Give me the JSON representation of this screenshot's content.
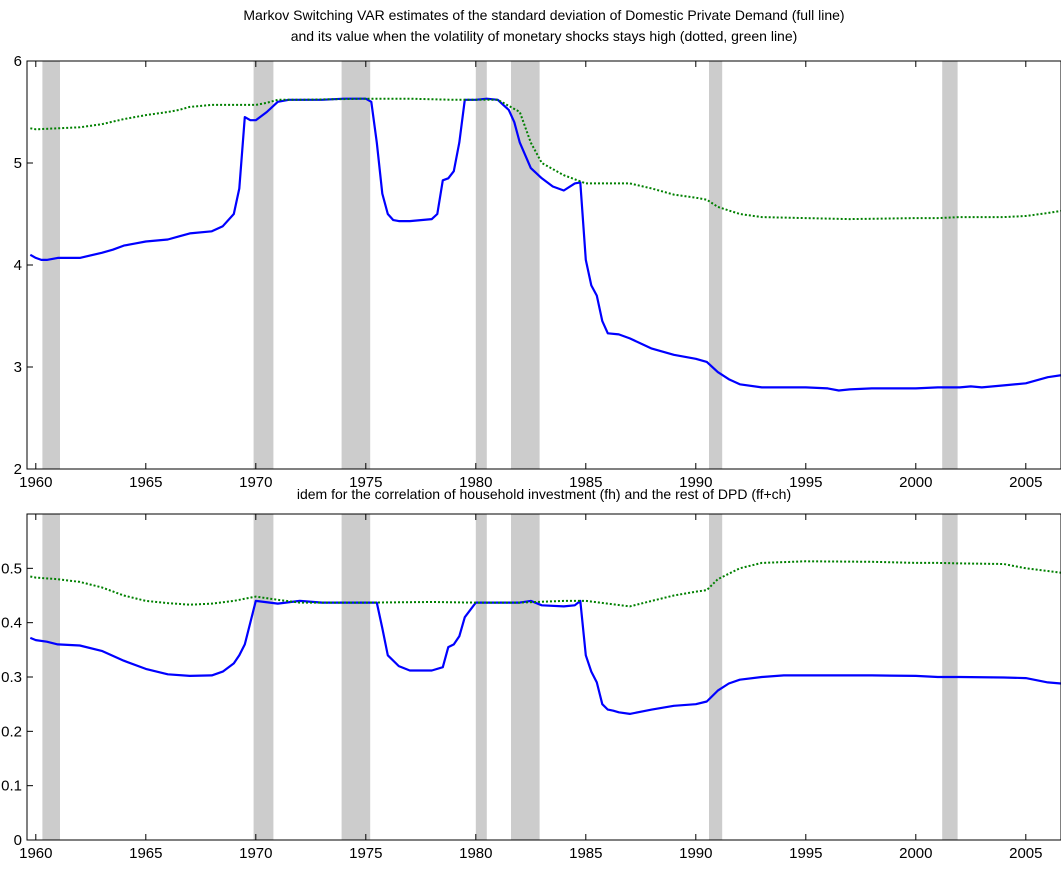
{
  "chart_data": [
    {
      "type": "line",
      "title_lines": [
        "Markov Switching VAR estimates of the standard deviation of Domestic Private Demand (full line)",
        "and its value when the volatility of monetary shocks stays high (dotted, green line)"
      ],
      "xlim": [
        1959.6,
        2006.6
      ],
      "ylim": [
        2,
        6
      ],
      "x_ticks": [
        "1960",
        "1965",
        "1970",
        "1975",
        "1980",
        "1985",
        "1990",
        "1995",
        "2000",
        "2005"
      ],
      "y_ticks": [
        "2",
        "3",
        "4",
        "5",
        "6"
      ],
      "grid": false,
      "recession_bands": [
        [
          1960.3,
          1961.1
        ],
        [
          1969.9,
          1970.8
        ],
        [
          1973.9,
          1975.2
        ],
        [
          1980.0,
          1980.5
        ],
        [
          1981.6,
          1982.9
        ],
        [
          1990.6,
          1991.2
        ],
        [
          2001.2,
          2001.9
        ]
      ],
      "band_color": "#cccccc",
      "series": [
        {
          "style": "solid",
          "color": "#0000ff",
          "x": [
            1959.75,
            1960,
            1960.25,
            1960.5,
            1961,
            1962,
            1963,
            1963.5,
            1964,
            1964.5,
            1965,
            1966,
            1966.5,
            1967,
            1968,
            1968.5,
            1969,
            1969.25,
            1969.5,
            1969.75,
            1970,
            1970.5,
            1971,
            1971.5,
            1972,
            1973,
            1974,
            1975,
            1975.25,
            1975.5,
            1975.75,
            1976,
            1976.25,
            1976.5,
            1977,
            1978,
            1978.25,
            1978.5,
            1978.75,
            1979,
            1979.25,
            1979.5,
            1980,
            1980.5,
            1981,
            1981.25,
            1981.5,
            1981.75,
            1982,
            1982.5,
            1983,
            1983.5,
            1984,
            1984.5,
            1984.75,
            1985,
            1985.25,
            1985.5,
            1985.75,
            1986,
            1986.5,
            1987,
            1988,
            1988.5,
            1989,
            1990,
            1990.5,
            1991,
            1991.5,
            1992,
            1993,
            1995,
            1996,
            1996.5,
            1997,
            1998,
            2000,
            2001,
            2002,
            2002.5,
            2003,
            2004,
            2005,
            2006,
            2006.6
          ],
          "y": [
            4.1,
            4.07,
            4.05,
            4.05,
            4.07,
            4.07,
            4.12,
            4.15,
            4.19,
            4.21,
            4.23,
            4.25,
            4.28,
            4.31,
            4.33,
            4.38,
            4.5,
            4.75,
            5.45,
            5.42,
            5.42,
            5.5,
            5.6,
            5.62,
            5.62,
            5.62,
            5.63,
            5.63,
            5.6,
            5.2,
            4.7,
            4.5,
            4.44,
            4.43,
            4.43,
            4.45,
            4.5,
            4.83,
            4.85,
            4.92,
            5.2,
            5.62,
            5.62,
            5.63,
            5.62,
            5.57,
            5.52,
            5.4,
            5.2,
            4.95,
            4.85,
            4.77,
            4.73,
            4.8,
            4.81,
            4.05,
            3.8,
            3.7,
            3.45,
            3.33,
            3.32,
            3.28,
            3.18,
            3.15,
            3.12,
            3.08,
            3.05,
            2.95,
            2.88,
            2.83,
            2.8,
            2.8,
            2.79,
            2.77,
            2.78,
            2.79,
            2.79,
            2.8,
            2.8,
            2.81,
            2.8,
            2.82,
            2.84,
            2.9,
            2.92
          ]
        },
        {
          "style": "dotted",
          "color": "#008000",
          "x": [
            1959.75,
            1960,
            1961,
            1962,
            1963,
            1964,
            1965,
            1966,
            1966.5,
            1967,
            1968,
            1969,
            1970,
            1970.5,
            1971,
            1972,
            1975,
            1977,
            1979,
            1980,
            1981,
            1982,
            1982.5,
            1983,
            1984,
            1985,
            1986,
            1987,
            1988,
            1989,
            1990,
            1990.5,
            1991,
            1992,
            1993,
            1995,
            1997,
            2000,
            2001,
            2002,
            2004,
            2005,
            2006,
            2006.6
          ],
          "y": [
            5.34,
            5.33,
            5.34,
            5.35,
            5.38,
            5.43,
            5.47,
            5.5,
            5.52,
            5.55,
            5.57,
            5.57,
            5.57,
            5.59,
            5.62,
            5.62,
            5.63,
            5.63,
            5.62,
            5.62,
            5.62,
            5.5,
            5.2,
            5.0,
            4.88,
            4.8,
            4.8,
            4.8,
            4.75,
            4.69,
            4.66,
            4.64,
            4.57,
            4.5,
            4.47,
            4.46,
            4.45,
            4.46,
            4.46,
            4.47,
            4.47,
            4.48,
            4.51,
            4.53
          ]
        }
      ]
    },
    {
      "type": "line",
      "title_lines": [
        "idem for the correlation of household investment (fh) and the rest of DPD (ff+ch)"
      ],
      "xlim": [
        1959.6,
        2006.6
      ],
      "ylim": [
        0,
        0.6
      ],
      "x_ticks": [
        "1960",
        "1965",
        "1970",
        "1975",
        "1980",
        "1985",
        "1990",
        "1995",
        "2000",
        "2005"
      ],
      "y_ticks": [
        "0",
        "0.1",
        "0.2",
        "0.3",
        "0.4",
        "0.5"
      ],
      "grid": false,
      "recession_bands": [
        [
          1960.3,
          1961.1
        ],
        [
          1969.9,
          1970.8
        ],
        [
          1973.9,
          1975.2
        ],
        [
          1980.0,
          1980.5
        ],
        [
          1981.6,
          1982.9
        ],
        [
          1990.6,
          1991.2
        ],
        [
          2001.2,
          2001.9
        ]
      ],
      "band_color": "#cccccc",
      "series": [
        {
          "style": "solid",
          "color": "#0000ff",
          "x": [
            1959.75,
            1960,
            1960.5,
            1961,
            1962,
            1963,
            1964,
            1965,
            1966,
            1967,
            1968,
            1968.5,
            1969,
            1969.25,
            1969.5,
            1970,
            1971,
            1972,
            1973,
            1974,
            1975,
            1975.25,
            1975.5,
            1975.75,
            1976,
            1976.5,
            1977,
            1978,
            1978.5,
            1978.75,
            1979,
            1979.25,
            1979.5,
            1980,
            1981,
            1982,
            1982.5,
            1983,
            1984,
            1984.5,
            1984.75,
            1985,
            1985.25,
            1985.5,
            1985.75,
            1986,
            1986.25,
            1986.5,
            1987,
            1988,
            1989,
            1990,
            1990.5,
            1991,
            1991.5,
            1992,
            1993,
            1994,
            1995,
            1998,
            2000,
            2001,
            2002,
            2004,
            2005,
            2006,
            2006.6
          ],
          "y": [
            0.372,
            0.368,
            0.365,
            0.36,
            0.358,
            0.348,
            0.33,
            0.315,
            0.305,
            0.302,
            0.303,
            0.31,
            0.325,
            0.34,
            0.36,
            0.44,
            0.435,
            0.44,
            0.437,
            0.437,
            0.437,
            0.437,
            0.437,
            0.39,
            0.34,
            0.32,
            0.312,
            0.312,
            0.318,
            0.355,
            0.36,
            0.375,
            0.41,
            0.437,
            0.437,
            0.437,
            0.44,
            0.432,
            0.43,
            0.432,
            0.44,
            0.34,
            0.31,
            0.29,
            0.25,
            0.24,
            0.238,
            0.235,
            0.232,
            0.24,
            0.247,
            0.25,
            0.255,
            0.275,
            0.288,
            0.295,
            0.3,
            0.303,
            0.303,
            0.303,
            0.302,
            0.3,
            0.3,
            0.299,
            0.298,
            0.29,
            0.288
          ]
        },
        {
          "style": "dotted",
          "color": "#008000",
          "x": [
            1959.75,
            1960,
            1961,
            1962,
            1963,
            1964,
            1965,
            1966,
            1967,
            1968,
            1969,
            1970,
            1971,
            1972,
            1975,
            1978,
            1980,
            1982,
            1984,
            1985,
            1986,
            1987,
            1988,
            1989,
            1990,
            1990.5,
            1991,
            1992,
            1993,
            1995,
            1998,
            2000,
            2001,
            2002,
            2004,
            2005,
            2006,
            2006.6
          ],
          "y": [
            0.485,
            0.483,
            0.48,
            0.475,
            0.465,
            0.45,
            0.44,
            0.436,
            0.433,
            0.435,
            0.44,
            0.448,
            0.442,
            0.437,
            0.437,
            0.438,
            0.437,
            0.437,
            0.44,
            0.44,
            0.435,
            0.43,
            0.44,
            0.45,
            0.457,
            0.46,
            0.48,
            0.5,
            0.51,
            0.513,
            0.512,
            0.51,
            0.51,
            0.509,
            0.508,
            0.5,
            0.495,
            0.492
          ]
        }
      ]
    }
  ]
}
